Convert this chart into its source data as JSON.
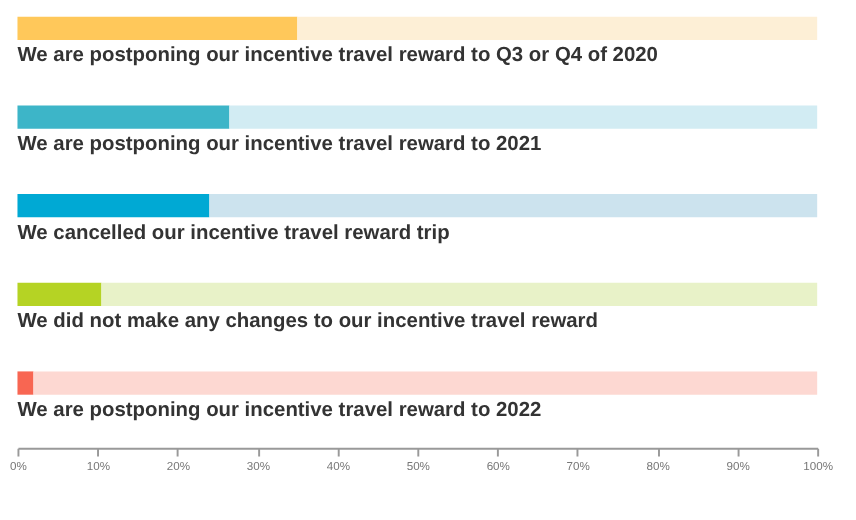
{
  "chart_data": {
    "type": "bar",
    "orientation": "horizontal",
    "stacked": true,
    "categories": [
      "We are postponing our incentive travel reward to Q3 or Q4 of 2020",
      "We are postponing our incentive travel reward to 2021",
      "We cancelled our incentive travel reward trip",
      "We did not make any changes to our incentive travel reward",
      "We are postponing our incentive travel reward to 2022"
    ],
    "series": [
      {
        "values": [
          35,
          26.5,
          24,
          10.5,
          2
        ],
        "colors": [
          "#ffc85a",
          "#3db5c8",
          "#00a9d4",
          "#b5d324",
          "#f86652"
        ]
      },
      {
        "values": [
          65,
          73.5,
          76,
          89.5,
          98
        ],
        "colors": [
          "#fdefd6",
          "#d2ecf3",
          "#cce3ee",
          "#e8f2c8",
          "#fdd8d2"
        ]
      }
    ],
    "xlim": [
      0,
      100
    ],
    "xticks": [
      {
        "value": 0,
        "label": "0%"
      },
      {
        "value": 10,
        "label": "10%"
      },
      {
        "value": 20,
        "label": "20%"
      },
      {
        "value": 30,
        "label": "30%"
      },
      {
        "value": 40,
        "label": "40%"
      },
      {
        "value": 50,
        "label": "50%"
      },
      {
        "value": 60,
        "label": "60%"
      },
      {
        "value": 70,
        "label": "70%"
      },
      {
        "value": 80,
        "label": "80%"
      },
      {
        "value": 90,
        "label": "90%"
      },
      {
        "value": 100,
        "label": "100%"
      }
    ],
    "grid": false
  }
}
